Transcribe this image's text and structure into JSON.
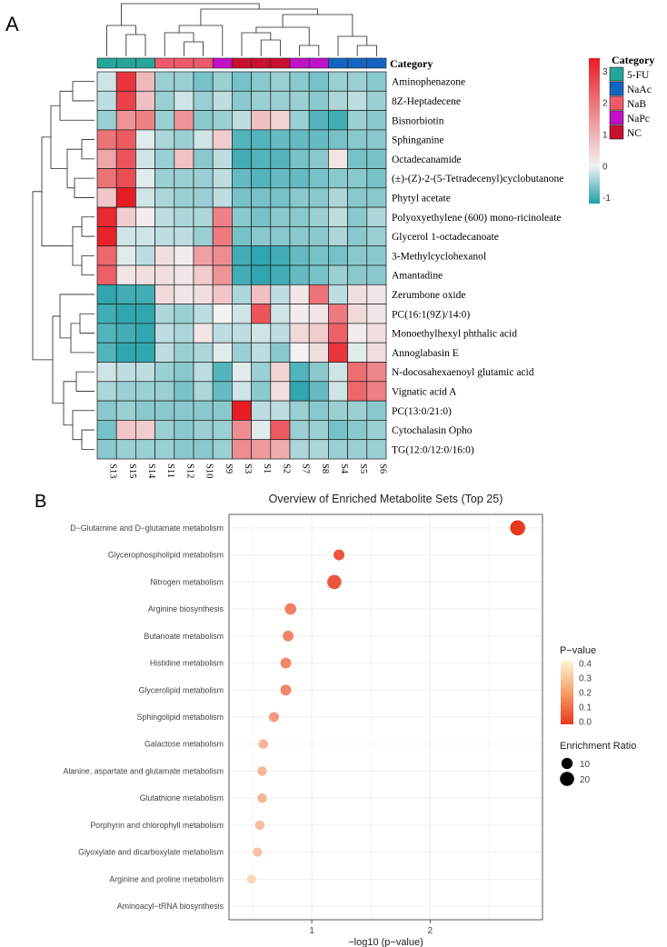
{
  "panel_a_label": "A",
  "panel_b_label": "B",
  "chart_data": [
    {
      "type": "heatmap",
      "title": "",
      "samples": [
        "S13",
        "S15",
        "S14",
        "S11",
        "S12",
        "S10",
        "S9",
        "S3",
        "S1",
        "S2",
        "S7",
        "S8",
        "S4",
        "S5",
        "S6"
      ],
      "sample_groups": [
        "5-FU",
        "5-FU",
        "5-FU",
        "NaB",
        "NaB",
        "NaB",
        "NaPc",
        "NC",
        "NC",
        "NC",
        "NaPc",
        "NaPc",
        "NaAc",
        "NaAc",
        "NaAc"
      ],
      "category_label": "Category",
      "metabolites": [
        "Aminophenazone",
        "8Z-Heptadecene",
        "Bisnorbiotin",
        "Sphinganine",
        "Octadecanamide",
        "(±)-(Z)-2-(5-Tetradecenyl)cyclobutanone",
        "Phytyl acetate",
        "Polyoxyethylene (600) mono-ricinoleate",
        "Glycerol 1-octadecanoate",
        "3-Methylcyclohexanol",
        "Amantadine",
        "Zerumbone oxide",
        "PC(16:1(9Z)/14:0)",
        "Monoethylhexyl phthalic acid",
        "Annoglabasin E",
        "N-docosahexaenoyl glutamic acid",
        "Vignatic acid A",
        "PC(13:0/21:0)",
        "Cytochalasin Opho",
        "TG(12:0/12:0/16:0)"
      ],
      "values": [
        [
          -0.2,
          3.0,
          0.9,
          -0.5,
          -0.5,
          -0.7,
          -0.5,
          -0.7,
          -0.6,
          -0.5,
          -0.6,
          -0.7,
          -0.5,
          -0.5,
          -0.6
        ],
        [
          -0.3,
          2.8,
          0.8,
          -0.5,
          -0.2,
          -0.5,
          -0.3,
          -0.6,
          -0.5,
          -0.5,
          -0.5,
          -0.6,
          -0.4,
          -0.3,
          -0.5
        ],
        [
          -0.5,
          1.5,
          1.8,
          -0.5,
          1.5,
          -0.6,
          -0.5,
          -0.3,
          0.8,
          0.5,
          -0.5,
          -0.9,
          -1.0,
          -0.5,
          -0.6
        ],
        [
          2.0,
          2.4,
          -0.1,
          -0.4,
          -0.5,
          -0.2,
          0.6,
          -0.9,
          -0.9,
          -0.8,
          -0.8,
          -0.8,
          -0.7,
          -0.6,
          -0.6
        ],
        [
          1.2,
          2.5,
          -0.2,
          -0.5,
          0.8,
          -0.6,
          -0.3,
          -1.0,
          -0.9,
          -0.9,
          -0.7,
          -0.6,
          0.2,
          -0.7,
          -0.7
        ],
        [
          2.0,
          2.6,
          -0.1,
          -0.5,
          -0.5,
          -0.5,
          -0.3,
          -0.8,
          -0.9,
          -0.8,
          -0.8,
          -0.7,
          -0.6,
          -0.6,
          -0.7
        ],
        [
          0.7,
          3.5,
          -0.2,
          -0.4,
          -0.5,
          -0.5,
          -0.3,
          -0.7,
          -0.7,
          -0.7,
          -0.6,
          -0.6,
          -0.4,
          -0.6,
          -0.6
        ],
        [
          3.2,
          0.6,
          0.1,
          -0.3,
          -0.4,
          -0.4,
          1.8,
          -0.6,
          -0.7,
          -0.6,
          -0.6,
          -0.5,
          -0.3,
          -0.6,
          -0.4
        ],
        [
          3.3,
          -0.2,
          -0.2,
          -0.3,
          -0.3,
          -0.5,
          1.9,
          -0.7,
          -0.6,
          -0.6,
          -0.6,
          -0.6,
          -0.4,
          -0.6,
          -0.5
        ],
        [
          2.2,
          -0.1,
          -0.3,
          0.3,
          0.1,
          1.3,
          1.6,
          -1.0,
          -1.1,
          -1.0,
          -0.8,
          -0.7,
          -0.7,
          -0.6,
          -0.6
        ],
        [
          2.3,
          0.2,
          0.3,
          0.3,
          0.2,
          0.6,
          1.5,
          -1.0,
          -1.1,
          -1.0,
          -0.8,
          -0.7,
          -0.5,
          -0.6,
          -0.6
        ],
        [
          -1.1,
          -1.0,
          -1.0,
          0.4,
          0.2,
          0.3,
          0.7,
          -0.4,
          0.8,
          -0.3,
          0.2,
          2.0,
          -0.3,
          0.3,
          0.2
        ],
        [
          -1.0,
          -1.1,
          -1.1,
          -0.4,
          -0.5,
          -0.3,
          0.0,
          -0.2,
          2.5,
          -0.2,
          0.1,
          0.2,
          1.9,
          0.4,
          0.2
        ],
        [
          -0.9,
          -1.0,
          -1.1,
          -0.3,
          -0.4,
          0.2,
          -0.3,
          -0.3,
          -0.2,
          -0.3,
          0.4,
          0.6,
          2.3,
          0.1,
          0.3
        ],
        [
          -0.9,
          -1.1,
          -1.1,
          -0.3,
          -0.5,
          -0.4,
          -0.1,
          -0.5,
          -0.3,
          -0.6,
          0.0,
          0.3,
          3.0,
          -0.1,
          0.3
        ],
        [
          -0.2,
          -0.3,
          -0.3,
          -0.5,
          -0.6,
          -0.3,
          -0.9,
          -0.1,
          -0.5,
          0.5,
          -0.9,
          -0.6,
          -0.2,
          2.1,
          1.7
        ],
        [
          -0.4,
          -0.5,
          -0.5,
          -0.5,
          -0.7,
          -0.4,
          -0.8,
          -0.2,
          -0.6,
          0.3,
          -1.1,
          -0.8,
          -0.2,
          2.2,
          1.8
        ],
        [
          -0.6,
          -0.5,
          -0.6,
          -0.6,
          -0.6,
          -0.6,
          -0.6,
          3.4,
          -0.3,
          -0.3,
          -0.5,
          -0.6,
          -0.5,
          -0.5,
          -0.6
        ],
        [
          -0.7,
          0.7,
          0.6,
          -0.5,
          -0.6,
          -0.5,
          -0.5,
          1.6,
          -0.1,
          2.4,
          -0.5,
          -0.5,
          -0.7,
          -0.6,
          -0.5
        ],
        [
          -0.6,
          -0.5,
          -0.5,
          -0.5,
          -0.6,
          -0.6,
          -0.5,
          1.6,
          1.4,
          1.1,
          -0.4,
          -0.4,
          -0.5,
          -0.5,
          -0.5
        ]
      ],
      "color_scale": {
        "min": -1.2,
        "max": 3.4,
        "ticks": [
          -1,
          0,
          1,
          2,
          3
        ],
        "low": "#1f9fa8",
        "mid": "#f2f2f2",
        "high": "#e81c24"
      },
      "legend": {
        "title": "Category",
        "entries": [
          {
            "name": "5-FU",
            "color": "#26a69a"
          },
          {
            "name": "NaAc",
            "color": "#1565c0"
          },
          {
            "name": "NaB",
            "color": "#ef5a6a"
          },
          {
            "name": "NaPc",
            "color": "#c010c8"
          },
          {
            "name": "NC",
            "color": "#c8102e"
          }
        ]
      }
    },
    {
      "type": "scatter",
      "title": "Overview of Enriched Metabolite Sets (Top 25)",
      "xlabel": "−log10 (p−value)",
      "ylabel": "",
      "xlim": [
        0.3,
        2.95
      ],
      "xticks": [
        1,
        2
      ],
      "categories": [
        "D−Glutamine and D−glutamate metabolism",
        "Glycerophospholipid metabolism",
        "Nitrogen metabolism",
        "Arginine biosynthesis",
        "Butanoate metabolism",
        "Histidine metabolism",
        "Glycerolipid metabolism",
        "Sphingolipid metabolism",
        "Galactose metabolism",
        "Alanine, aspartate and glutamate metabolism",
        "Glutathione metabolism",
        "Porphyrin and chlorophyll metabolism",
        "Glyoxylate and dicarboxylate metabolism",
        "Arginine and proline metabolism",
        "Aminoacyl−tRNA biosynthesis"
      ],
      "x": [
        2.74,
        1.23,
        1.19,
        0.82,
        0.8,
        0.78,
        0.78,
        0.68,
        0.59,
        0.58,
        0.58,
        0.56,
        0.54,
        0.49,
        null
      ],
      "p_value": [
        0.002,
        0.06,
        0.065,
        0.15,
        0.16,
        0.165,
        0.165,
        0.21,
        0.26,
        0.265,
        0.265,
        0.28,
        0.29,
        0.33,
        null
      ],
      "enrichment_ratio": [
        24,
        9,
        20,
        11,
        9,
        9,
        9,
        7,
        6,
        6,
        6,
        5.5,
        5.5,
        5,
        null
      ],
      "legend": {
        "pvalue_title": "P−value",
        "pvalue_ticks": [
          "0.4",
          "0.3",
          "0.2",
          "0.1",
          "0.0"
        ],
        "pvalue_low": "#e8381e",
        "pvalue_high": "#fff5d6",
        "size_title": "Enrichment Ratio",
        "size_entries": [
          10,
          20
        ]
      }
    }
  ]
}
